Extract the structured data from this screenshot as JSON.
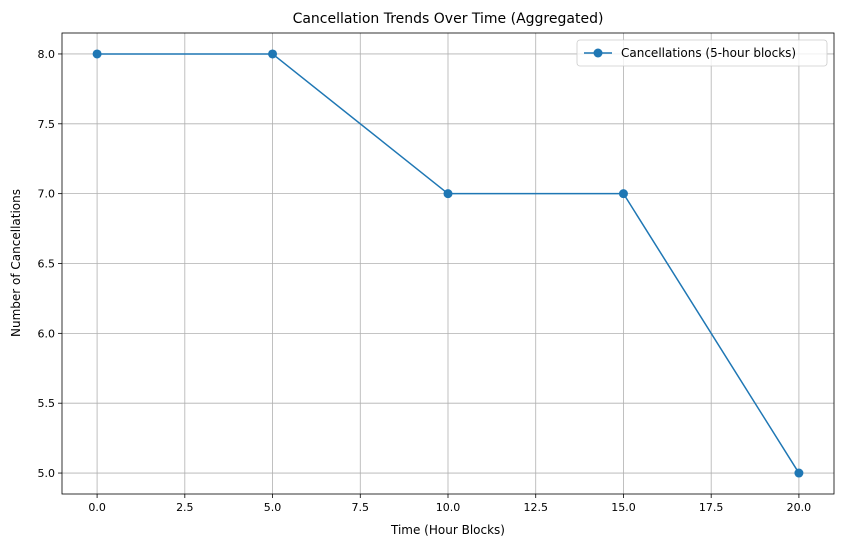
{
  "chart_data": {
    "type": "line",
    "title": "Cancellation Trends Over Time (Aggregated)",
    "xlabel": "Time (Hour Blocks)",
    "ylabel": "Number of Cancellations",
    "x": [
      0,
      5,
      10,
      15,
      20
    ],
    "series": [
      {
        "name": "Cancellations (5-hour blocks)",
        "values": [
          8,
          8,
          7,
          7,
          5
        ],
        "color": "#1f77b4",
        "marker": "circle"
      }
    ],
    "xlim": [
      -1,
      21
    ],
    "ylim": [
      4.85,
      8.15
    ],
    "xticks": [
      0,
      2.5,
      5,
      7.5,
      10,
      12.5,
      15,
      17.5,
      20
    ],
    "xtick_labels": [
      "0.0",
      "2.5",
      "5.0",
      "7.5",
      "10.0",
      "12.5",
      "15.0",
      "17.5",
      "20.0"
    ],
    "yticks": [
      5,
      5.5,
      6,
      6.5,
      7,
      7.5,
      8
    ],
    "ytick_labels": [
      "5.0",
      "5.5",
      "6.0",
      "6.5",
      "7.0",
      "7.5",
      "8.0"
    ],
    "grid": true,
    "legend_position": "upper right"
  }
}
